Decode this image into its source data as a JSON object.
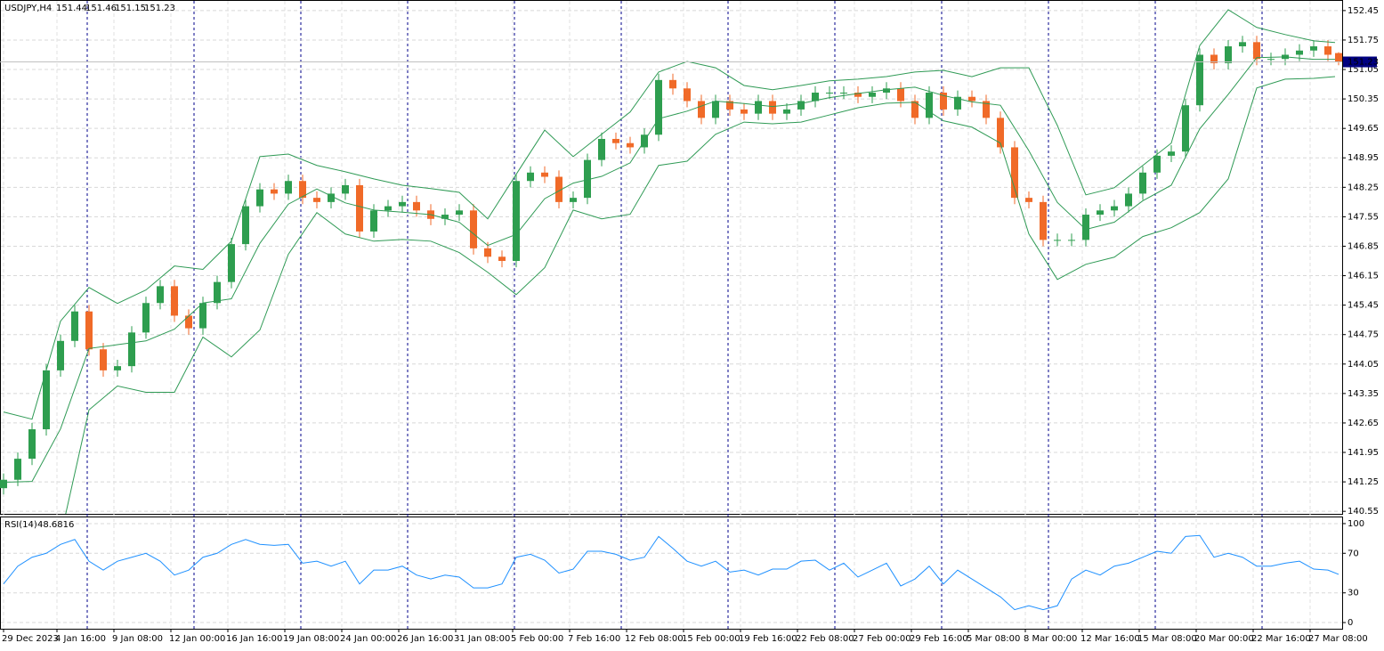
{
  "chart_data": [
    {
      "type": "candlestick",
      "title": "USDJPY,H4",
      "up_color": "#2e9e4f",
      "down_color": "#f06a28",
      "grid": true,
      "xlim": [
        -1,
        376
      ],
      "ylim": [
        140.49,
        152.68
      ],
      "xticks": [
        {
          "value": 0,
          "label": "29 Dec 2023"
        },
        {
          "value": 15,
          "label": "4 Jan 16:00"
        },
        {
          "value": 31,
          "label": "9 Jan 08:00"
        },
        {
          "value": 47,
          "label": "12 Jan 00:00"
        },
        {
          "value": 63,
          "label": "16 Jan 16:00"
        },
        {
          "value": 79,
          "label": "19 Jan 08:00"
        },
        {
          "value": 95,
          "label": "24 Jan 00:00"
        },
        {
          "value": 111,
          "label": "26 Jan 16:00"
        },
        {
          "value": 127,
          "label": "31 Jan 08:00"
        },
        {
          "value": 143,
          "label": "5 Feb 00:00"
        },
        {
          "value": 159,
          "label": "7 Feb 16:00"
        },
        {
          "value": 175,
          "label": "12 Feb 08:00"
        },
        {
          "value": 191,
          "label": "15 Feb 00:00"
        },
        {
          "value": 207,
          "label": "19 Feb 16:00"
        },
        {
          "value": 223,
          "label": "22 Feb 08:00"
        },
        {
          "value": 239,
          "label": "27 Feb 00:00"
        },
        {
          "value": 255,
          "label": "29 Feb 16:00"
        },
        {
          "value": 271,
          "label": "5 Mar 08:00"
        },
        {
          "value": 287,
          "label": "8 Mar 00:00"
        },
        {
          "value": 303,
          "label": "12 Mar 16:00"
        },
        {
          "value": 319,
          "label": "15 Mar 08:00"
        },
        {
          "value": 335,
          "label": "20 Mar 00:00"
        },
        {
          "value": 351,
          "label": "22 Mar 16:00"
        },
        {
          "value": 367,
          "label": "27 Mar 08:00"
        }
      ],
      "yticks": [
        152.45,
        151.75,
        151.05,
        150.35,
        149.65,
        148.95,
        148.25,
        147.55,
        146.85,
        146.15,
        145.45,
        144.75,
        144.05,
        143.35,
        142.65,
        141.95,
        141.25,
        140.55
      ],
      "x": [
        0,
        4,
        8,
        12,
        16,
        20,
        24,
        28,
        32,
        36,
        40,
        44,
        48,
        52,
        56,
        60,
        64,
        68,
        72,
        76,
        80,
        84,
        88,
        92,
        96,
        100,
        104,
        108,
        112,
        116,
        120,
        124,
        128,
        132,
        136,
        140,
        144,
        148,
        152,
        156,
        160,
        164,
        168,
        172,
        176,
        180,
        184,
        188,
        192,
        196,
        200,
        204,
        208,
        212,
        216,
        220,
        224,
        228,
        232,
        236,
        240,
        244,
        248,
        252,
        256,
        260,
        264,
        268,
        272,
        276,
        280,
        284,
        288,
        292,
        296,
        300,
        304,
        308,
        312,
        316,
        320,
        324,
        328,
        332,
        336,
        340,
        344,
        348,
        352,
        356,
        360,
        364,
        368,
        372,
        375
      ],
      "open": [
        141.1,
        141.3,
        141.8,
        142.5,
        143.9,
        144.6,
        145.3,
        144.4,
        143.9,
        144.0,
        144.8,
        145.5,
        145.9,
        145.2,
        144.9,
        145.5,
        146.0,
        146.9,
        147.8,
        148.2,
        148.1,
        148.4,
        148.0,
        147.9,
        148.1,
        148.3,
        147.2,
        147.7,
        147.8,
        147.9,
        147.7,
        147.5,
        147.6,
        147.7,
        146.8,
        146.6,
        146.5,
        148.4,
        148.6,
        148.5,
        147.9,
        148.0,
        148.9,
        149.4,
        149.3,
        149.2,
        149.5,
        150.8,
        150.6,
        150.3,
        149.9,
        150.3,
        150.1,
        150.0,
        150.3,
        150.0,
        150.1,
        150.3,
        150.5,
        150.5,
        150.5,
        150.4,
        150.5,
        150.6,
        150.3,
        149.9,
        150.5,
        150.1,
        150.4,
        150.3,
        149.9,
        149.2,
        148.0,
        147.9,
        147.0,
        147.0,
        147.0,
        147.6,
        147.7,
        147.8,
        148.1,
        148.6,
        149.0,
        149.1,
        150.2,
        151.4,
        151.2,
        151.6,
        151.7,
        151.3,
        151.3,
        151.4,
        151.5,
        151.6,
        151.44
      ],
      "high": [
        141.45,
        141.95,
        142.65,
        144.05,
        144.75,
        145.45,
        145.45,
        144.55,
        144.15,
        144.95,
        145.65,
        146.05,
        146.05,
        145.35,
        145.65,
        146.15,
        147.05,
        147.95,
        148.35,
        148.35,
        148.55,
        148.55,
        148.15,
        148.25,
        148.45,
        148.45,
        147.85,
        147.95,
        148.05,
        148.05,
        147.85,
        147.75,
        147.85,
        147.85,
        146.95,
        146.75,
        148.55,
        148.75,
        148.75,
        148.65,
        148.15,
        149.05,
        149.55,
        149.55,
        149.45,
        149.65,
        150.95,
        150.95,
        150.75,
        150.45,
        150.45,
        150.45,
        150.25,
        150.45,
        150.45,
        150.25,
        150.45,
        150.65,
        150.65,
        150.65,
        150.65,
        150.65,
        150.75,
        150.75,
        150.45,
        150.65,
        150.65,
        150.55,
        150.55,
        150.45,
        150.05,
        149.35,
        148.15,
        148.05,
        147.15,
        147.15,
        147.75,
        147.85,
        147.95,
        148.25,
        148.75,
        149.15,
        149.25,
        150.35,
        151.55,
        151.55,
        151.75,
        151.85,
        151.85,
        151.45,
        151.55,
        151.65,
        151.75,
        151.75,
        151.46
      ],
      "low": [
        140.95,
        141.15,
        141.65,
        142.35,
        143.75,
        144.45,
        144.25,
        143.75,
        143.75,
        143.85,
        144.65,
        145.35,
        145.05,
        144.75,
        144.75,
        145.35,
        145.85,
        146.75,
        147.65,
        147.95,
        147.95,
        147.85,
        147.75,
        147.75,
        147.95,
        147.05,
        147.05,
        147.55,
        147.65,
        147.55,
        147.35,
        147.35,
        147.45,
        146.65,
        146.45,
        146.35,
        146.35,
        148.25,
        148.35,
        147.75,
        147.75,
        147.85,
        148.75,
        149.15,
        149.05,
        149.05,
        149.35,
        150.45,
        150.15,
        149.75,
        149.75,
        149.95,
        149.85,
        149.85,
        149.85,
        149.85,
        149.95,
        150.15,
        150.35,
        150.35,
        150.25,
        150.25,
        150.35,
        150.15,
        149.75,
        149.75,
        149.95,
        149.95,
        150.15,
        149.75,
        149.05,
        147.85,
        147.75,
        146.85,
        146.85,
        146.85,
        146.85,
        147.45,
        147.55,
        147.65,
        147.95,
        148.45,
        148.85,
        148.95,
        150.05,
        151.05,
        151.05,
        151.45,
        151.15,
        151.15,
        151.15,
        151.25,
        151.35,
        151.25,
        151.15
      ],
      "close": [
        141.3,
        141.8,
        142.5,
        143.9,
        144.6,
        145.3,
        144.4,
        143.9,
        144.0,
        144.8,
        145.5,
        145.9,
        145.2,
        144.9,
        145.5,
        146.0,
        146.9,
        147.8,
        148.2,
        148.1,
        148.4,
        148.0,
        147.9,
        148.1,
        148.3,
        147.2,
        147.7,
        147.8,
        147.9,
        147.7,
        147.5,
        147.6,
        147.7,
        146.8,
        146.6,
        146.5,
        148.4,
        148.6,
        148.5,
        147.9,
        148.0,
        148.9,
        149.4,
        149.3,
        149.2,
        149.5,
        150.8,
        150.6,
        150.3,
        149.9,
        150.3,
        150.1,
        150.0,
        150.3,
        150.0,
        150.1,
        150.3,
        150.5,
        150.5,
        150.5,
        150.4,
        150.5,
        150.6,
        150.3,
        149.9,
        150.5,
        150.1,
        150.4,
        150.3,
        149.9,
        149.2,
        148.0,
        147.9,
        147.0,
        147.0,
        147.0,
        147.6,
        147.7,
        147.8,
        148.1,
        148.6,
        149.0,
        149.1,
        150.2,
        151.4,
        151.2,
        151.6,
        151.7,
        151.3,
        151.3,
        151.4,
        151.5,
        151.6,
        151.4,
        151.23
      ],
      "bands": {
        "color": "#2f9a55",
        "x": [
          0,
          8,
          16,
          24,
          32,
          40,
          48,
          56,
          64,
          72,
          80,
          88,
          96,
          104,
          112,
          120,
          128,
          136,
          144,
          152,
          160,
          168,
          176,
          184,
          192,
          200,
          208,
          216,
          224,
          232,
          240,
          248,
          256,
          264,
          272,
          280,
          288,
          296,
          304,
          312,
          320,
          328,
          336,
          344,
          352,
          360,
          368,
          374
        ],
        "upper": [
          142.91,
          142.74,
          145.07,
          145.87,
          145.49,
          145.81,
          146.38,
          146.3,
          146.97,
          148.98,
          149.04,
          148.77,
          148.62,
          148.45,
          148.3,
          148.22,
          148.13,
          147.5,
          148.56,
          149.61,
          148.98,
          149.51,
          150.04,
          150.99,
          151.24,
          151.09,
          150.67,
          150.57,
          150.67,
          150.78,
          150.82,
          150.88,
          150.99,
          151.03,
          150.88,
          151.09,
          151.09,
          149.72,
          148.07,
          148.24,
          148.77,
          149.3,
          151.62,
          152.47,
          152.05,
          151.88,
          151.73,
          151.69
        ],
        "middle": [
          141.24,
          141.26,
          142.51,
          144.42,
          144.51,
          144.6,
          144.88,
          145.5,
          145.6,
          146.92,
          147.85,
          148.21,
          147.88,
          147.71,
          147.66,
          147.6,
          147.42,
          146.87,
          147.13,
          147.98,
          148.35,
          148.51,
          148.83,
          149.88,
          150.06,
          150.3,
          150.24,
          150.17,
          150.24,
          150.38,
          150.48,
          150.57,
          150.63,
          150.43,
          150.28,
          150.2,
          149.12,
          147.89,
          147.25,
          147.42,
          147.93,
          148.3,
          149.64,
          150.46,
          151.33,
          151.35,
          151.29,
          151.29
        ],
        "lower": [
          139.57,
          139.78,
          139.94,
          142.96,
          143.53,
          143.38,
          143.38,
          144.69,
          144.22,
          144.86,
          146.66,
          147.65,
          147.14,
          146.97,
          147.01,
          146.97,
          146.7,
          146.23,
          145.7,
          146.34,
          147.71,
          147.5,
          147.61,
          148.77,
          148.87,
          149.51,
          149.8,
          149.76,
          149.8,
          149.97,
          150.14,
          150.25,
          150.27,
          149.83,
          149.68,
          149.3,
          147.14,
          146.06,
          146.42,
          146.59,
          147.08,
          147.29,
          147.65,
          148.45,
          150.61,
          150.82,
          150.84,
          150.88
        ]
      }
    },
    {
      "type": "line",
      "title": "RSI(14)",
      "color": "#1e90ff",
      "xlim": [
        -1,
        376
      ],
      "ylim": [
        -6.25,
        106.25
      ],
      "yticks": [
        100,
        70,
        30,
        0
      ],
      "grid": true,
      "x": [
        0,
        4,
        8,
        12,
        16,
        20,
        24,
        28,
        32,
        36,
        40,
        44,
        48,
        52,
        56,
        60,
        64,
        68,
        72,
        76,
        80,
        84,
        88,
        92,
        96,
        100,
        104,
        108,
        112,
        116,
        120,
        124,
        128,
        132,
        136,
        140,
        144,
        148,
        152,
        156,
        160,
        164,
        168,
        172,
        176,
        180,
        184,
        188,
        192,
        196,
        200,
        204,
        208,
        212,
        216,
        220,
        224,
        228,
        232,
        236,
        240,
        244,
        248,
        252,
        256,
        260,
        264,
        268,
        272,
        276,
        280,
        284,
        288,
        292,
        296,
        300,
        304,
        308,
        312,
        316,
        320,
        324,
        328,
        332,
        336,
        340,
        344,
        348,
        352,
        356,
        360,
        364,
        368,
        372,
        375
      ],
      "values": [
        39,
        57,
        66,
        70,
        79,
        84,
        62,
        53,
        62,
        66,
        70,
        62,
        48,
        53,
        66,
        70,
        79,
        84,
        79,
        78,
        79,
        60,
        62,
        57,
        62,
        39,
        53,
        53,
        57,
        48,
        44,
        48,
        46,
        35,
        35,
        39,
        66,
        69,
        63,
        50,
        54,
        72,
        72,
        69,
        63,
        66,
        87,
        75,
        62,
        57,
        62,
        51,
        53,
        48,
        54,
        54,
        62,
        63,
        53,
        60,
        46,
        53,
        60,
        37,
        44,
        57,
        39,
        53,
        44,
        35,
        26,
        13,
        17,
        13,
        17,
        44,
        53,
        48,
        57,
        60,
        66,
        72,
        70,
        87,
        88,
        66,
        70,
        66,
        57,
        57,
        60,
        62,
        54,
        53,
        48.6816
      ]
    }
  ]
}
